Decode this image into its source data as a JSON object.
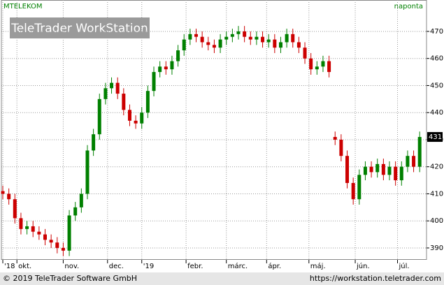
{
  "chart_data": {
    "type": "candlestick",
    "title": "MTELEKOM",
    "subtitle": "naponta",
    "watermark": "TeleTrader WorkStation",
    "footer_left": "© 2019 TeleTrader Software GmbH",
    "footer_right": "https://workstation.teletrader.com",
    "up_color": "#008000",
    "down_color": "#cc0000",
    "grid": true,
    "x": [
      0,
      3,
      6,
      9,
      12,
      15,
      18,
      21,
      24,
      27,
      30,
      33,
      36,
      39,
      42,
      45,
      48,
      51,
      54,
      57,
      60,
      63,
      66,
      69,
      72,
      75,
      78,
      81,
      84,
      87,
      90,
      93,
      96,
      99,
      102,
      105,
      108,
      111,
      114,
      117,
      120,
      123,
      126,
      129,
      132,
      135,
      138,
      141,
      144,
      147,
      150,
      153,
      156,
      159,
      162,
      165,
      168,
      171,
      174,
      177,
      180,
      183,
      186,
      189,
      192,
      195,
      198,
      201,
      204,
      207
    ],
    "open": [
      411,
      410,
      408,
      401,
      397,
      398,
      396,
      395,
      393,
      392,
      390,
      389,
      402,
      405,
      410,
      426,
      432,
      445,
      449,
      451,
      447,
      441,
      437,
      436,
      440,
      448,
      455,
      457,
      456,
      459,
      463,
      467,
      469,
      468,
      466,
      465,
      464,
      467,
      468,
      469,
      470,
      468,
      467,
      468,
      466,
      467,
      464,
      466,
      469,
      466,
      464,
      460,
      456,
      457,
      459,
      431,
      430,
      424,
      414,
      408,
      417,
      420,
      418,
      421,
      417,
      420,
      415,
      420,
      424,
      420
    ],
    "high": [
      413,
      412,
      410,
      403,
      400,
      400,
      398,
      397,
      395,
      394,
      392,
      404,
      407,
      412,
      428,
      434,
      447,
      451,
      453,
      453,
      449,
      443,
      439,
      442,
      450,
      457,
      459,
      459,
      461,
      465,
      469,
      471,
      471,
      470,
      468,
      467,
      469,
      470,
      471,
      472,
      472,
      470,
      470,
      470,
      469,
      469,
      468,
      471,
      471,
      468,
      466,
      462,
      459,
      461,
      461,
      433,
      432,
      426,
      416,
      419,
      422,
      422,
      423,
      423,
      422,
      422,
      422,
      426,
      426,
      433
    ],
    "low": [
      408,
      406,
      399,
      395,
      395,
      394,
      393,
      391,
      390,
      388,
      387,
      387,
      400,
      403,
      408,
      424,
      430,
      443,
      447,
      445,
      439,
      435,
      434,
      434,
      438,
      446,
      453,
      454,
      454,
      457,
      461,
      465,
      466,
      464,
      463,
      462,
      462,
      465,
      466,
      467,
      466,
      465,
      465,
      464,
      464,
      462,
      462,
      464,
      464,
      462,
      458,
      454,
      454,
      455,
      453,
      428,
      422,
      412,
      406,
      406,
      415,
      416,
      416,
      415,
      415,
      413,
      413,
      418,
      418,
      418
    ],
    "close": [
      410,
      408,
      401,
      397,
      398,
      396,
      395,
      393,
      392,
      390,
      389,
      402,
      405,
      410,
      426,
      432,
      445,
      449,
      451,
      447,
      441,
      437,
      436,
      440,
      448,
      455,
      457,
      456,
      459,
      463,
      467,
      469,
      468,
      466,
      465,
      464,
      467,
      468,
      469,
      470,
      468,
      467,
      468,
      466,
      467,
      464,
      466,
      469,
      466,
      464,
      460,
      456,
      457,
      459,
      455,
      430,
      424,
      414,
      408,
      417,
      420,
      418,
      421,
      417,
      420,
      415,
      420,
      424,
      420,
      431
    ],
    "last_value": 431,
    "xlim": [
      -0.7,
      210.4
    ],
    "xticks": [
      {
        "value": 0,
        "label": "'18"
      },
      {
        "value": 7,
        "label": "okt."
      },
      {
        "value": 30,
        "label": "nov."
      },
      {
        "value": 52,
        "label": "dec."
      },
      {
        "value": 69,
        "label": "'19"
      },
      {
        "value": 91,
        "label": "febr."
      },
      {
        "value": 111,
        "label": "márc."
      },
      {
        "value": 131,
        "label": "ápr."
      },
      {
        "value": 152,
        "label": "máj."
      },
      {
        "value": 175,
        "label": "jún."
      },
      {
        "value": 196,
        "label": "júl."
      }
    ],
    "ylim": [
      385.6,
      481.6
    ],
    "yticks": [
      390,
      400,
      410,
      420,
      430,
      440,
      450,
      460,
      470
    ]
  }
}
